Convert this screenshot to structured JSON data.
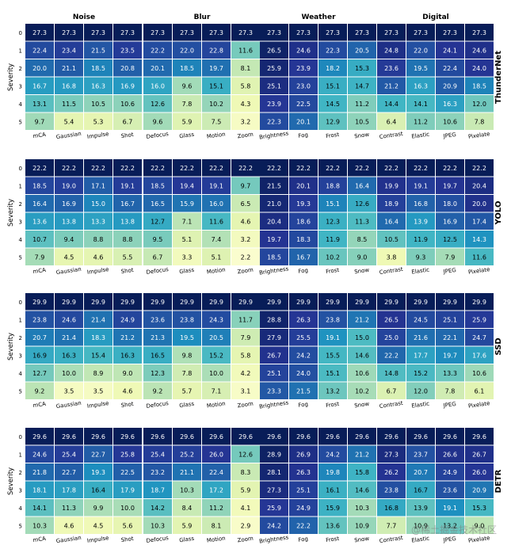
{
  "chart_data": {
    "type": "heatmap",
    "title": "",
    "groups": [
      "Noise",
      "Blur",
      "Weather",
      "Digital"
    ],
    "columns": [
      [
        "mCA",
        "Gaussian",
        "Impulse",
        "Shot"
      ],
      [
        "Defocus",
        "Glass",
        "Motion",
        "Zoom"
      ],
      [
        "Brightness",
        "Fog",
        "Frost",
        "Snow"
      ],
      [
        "Contrast",
        "Elastic",
        "JPEG",
        "Pixelate"
      ]
    ],
    "row_labels": [
      "0",
      "1",
      "2",
      "3",
      "4",
      "5"
    ],
    "ylabel": "Severity",
    "colormap": "YlGnBu",
    "colors": [
      "#ffffd9",
      "#edf8b1",
      "#c7e9b4",
      "#7fcdbb",
      "#41b6c4",
      "#1d91c0",
      "#225ea8",
      "#253494",
      "#081d58"
    ],
    "models": [
      {
        "name": "ThunderNet",
        "values": [
          [
            27.3,
            27.3,
            27.3,
            27.3,
            27.3,
            27.3,
            27.3,
            27.3,
            27.3,
            27.3,
            27.3,
            27.3,
            27.3,
            27.3,
            27.3,
            27.3
          ],
          [
            22.4,
            23.4,
            21.5,
            23.5,
            22.2,
            22.0,
            22.8,
            11.6,
            26.5,
            24.6,
            22.3,
            20.5,
            24.8,
            22.0,
            24.1,
            24.6
          ],
          [
            20.0,
            21.1,
            18.5,
            20.8,
            20.1,
            18.5,
            19.7,
            8.1,
            25.9,
            23.9,
            18.2,
            15.3,
            23.6,
            19.5,
            22.4,
            24.0
          ],
          [
            16.7,
            16.8,
            16.3,
            16.9,
            16.0,
            9.6,
            15.1,
            5.8,
            25.1,
            23.0,
            15.1,
            14.7,
            21.2,
            16.3,
            20.9,
            18.5
          ],
          [
            13.1,
            11.5,
            10.5,
            10.6,
            12.6,
            7.8,
            10.2,
            4.3,
            23.9,
            22.5,
            14.5,
            11.2,
            14.4,
            14.1,
            16.3,
            12.0
          ],
          [
            9.7,
            5.4,
            5.3,
            6.7,
            9.6,
            5.9,
            7.5,
            3.2,
            22.3,
            20.1,
            12.9,
            10.5,
            6.4,
            11.2,
            10.6,
            7.8
          ]
        ]
      },
      {
        "name": "YOLO",
        "values": [
          [
            22.2,
            22.2,
            22.2,
            22.2,
            22.2,
            22.2,
            22.2,
            22.2,
            22.2,
            22.2,
            22.2,
            22.2,
            22.2,
            22.2,
            22.2,
            22.2
          ],
          [
            18.5,
            19.0,
            17.1,
            19.1,
            18.5,
            19.4,
            19.1,
            9.7,
            21.5,
            20.1,
            18.8,
            16.4,
            19.9,
            19.1,
            19.7,
            20.4
          ],
          [
            16.4,
            16.9,
            15.0,
            16.7,
            16.5,
            15.9,
            16.0,
            6.5,
            21.0,
            19.3,
            15.1,
            12.6,
            18.9,
            16.8,
            18.0,
            20.0
          ],
          [
            13.6,
            13.8,
            13.3,
            13.8,
            12.7,
            7.1,
            11.6,
            4.6,
            20.4,
            18.6,
            12.3,
            11.3,
            16.4,
            13.9,
            16.9,
            17.4
          ],
          [
            10.7,
            9.4,
            8.8,
            8.8,
            9.5,
            5.1,
            7.4,
            3.2,
            19.7,
            18.3,
            11.9,
            8.5,
            10.5,
            11.9,
            12.5,
            14.3
          ],
          [
            7.9,
            4.5,
            4.6,
            5.5,
            6.7,
            3.3,
            5.1,
            2.2,
            18.5,
            16.7,
            10.2,
            9.0,
            3.8,
            9.3,
            7.9,
            11.6
          ]
        ]
      },
      {
        "name": "SSD",
        "values": [
          [
            29.9,
            29.9,
            29.9,
            29.9,
            29.9,
            29.9,
            29.9,
            29.9,
            29.9,
            29.9,
            29.9,
            29.9,
            29.9,
            29.9,
            29.9,
            29.9
          ],
          [
            23.8,
            24.6,
            21.4,
            24.9,
            23.6,
            23.8,
            24.3,
            11.7,
            28.8,
            26.3,
            23.8,
            21.2,
            26.5,
            24.5,
            25.1,
            25.9
          ],
          [
            20.7,
            21.4,
            18.3,
            21.2,
            21.3,
            19.5,
            20.5,
            7.9,
            27.9,
            25.5,
            19.1,
            15.0,
            25.0,
            21.6,
            22.1,
            24.7
          ],
          [
            16.9,
            16.3,
            15.4,
            16.3,
            16.5,
            9.8,
            15.2,
            5.8,
            26.7,
            24.2,
            15.5,
            14.6,
            22.2,
            17.7,
            19.7,
            17.6
          ],
          [
            12.7,
            10.0,
            8.9,
            9.0,
            12.3,
            7.8,
            10.0,
            4.2,
            25.1,
            24.0,
            15.1,
            10.6,
            14.8,
            15.2,
            13.3,
            10.6
          ],
          [
            9.2,
            3.5,
            3.5,
            4.6,
            9.2,
            5.7,
            7.1,
            3.1,
            23.3,
            21.5,
            13.2,
            10.2,
            6.7,
            12.0,
            7.8,
            6.1
          ]
        ]
      },
      {
        "name": "DETR",
        "values": [
          [
            29.6,
            29.6,
            29.6,
            29.6,
            29.6,
            29.6,
            29.6,
            29.6,
            29.6,
            29.6,
            29.6,
            29.6,
            29.6,
            29.6,
            29.6,
            29.6
          ],
          [
            24.6,
            25.4,
            22.7,
            25.8,
            25.4,
            25.2,
            26.0,
            12.6,
            28.9,
            26.9,
            24.2,
            21.2,
            27.3,
            23.7,
            26.6,
            26.7
          ],
          [
            21.8,
            22.7,
            19.3,
            22.5,
            23.2,
            21.1,
            22.4,
            8.3,
            28.1,
            26.3,
            19.8,
            15.8,
            26.2,
            20.7,
            24.9,
            26.0
          ],
          [
            18.1,
            17.8,
            16.4,
            17.9,
            18.7,
            10.3,
            17.2,
            5.9,
            27.3,
            25.1,
            16.1,
            14.6,
            23.8,
            16.7,
            23.6,
            20.9
          ],
          [
            14.1,
            11.3,
            9.9,
            10.0,
            14.2,
            8.4,
            11.2,
            4.1,
            25.9,
            24.9,
            15.9,
            10.3,
            16.8,
            13.9,
            19.1,
            15.3
          ],
          [
            10.3,
            4.6,
            4.5,
            5.6,
            10.3,
            5.9,
            8.1,
            2.9,
            24.2,
            22.2,
            13.6,
            10.9,
            7.7,
            10.9,
            13.2,
            9.0
          ]
        ]
      }
    ]
  },
  "watermark": "@稀土掘金技术社区"
}
